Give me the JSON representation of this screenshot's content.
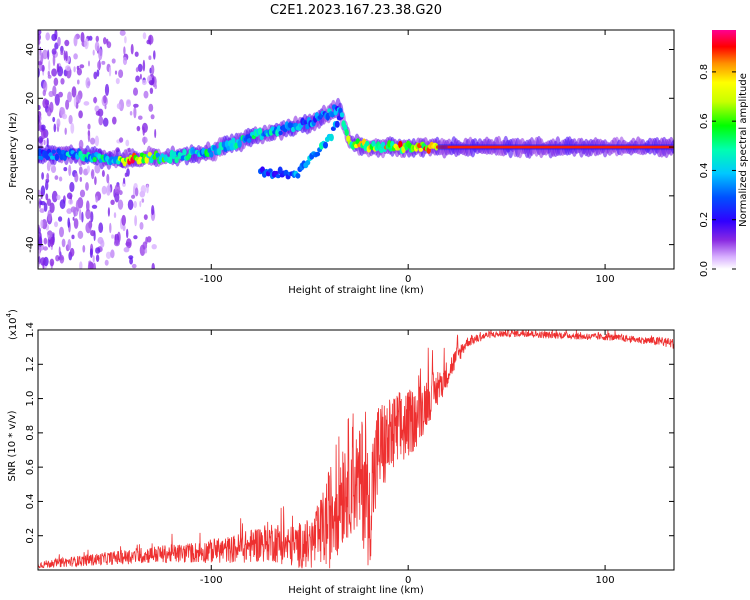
{
  "title": "C2E1.2023.167.23.38.G20",
  "chart_data": [
    {
      "type": "heatmap",
      "xlabel": "Height of straight line (km)",
      "ylabel": "Frequency (Hz)",
      "xlim": [
        -188,
        135
      ],
      "ylim": [
        -50,
        48
      ],
      "xticks": [
        -100,
        0,
        100
      ],
      "yticks": [
        -40,
        -20,
        0,
        20,
        40
      ],
      "colorbar": {
        "label": "Normalized spectral amplitude",
        "range": [
          0,
          0.97
        ],
        "ticks": [
          "0.0",
          "0.2",
          "0.4",
          "0.6",
          "0.8"
        ],
        "tick_values": [
          0,
          0.2,
          0.4,
          0.6,
          0.8
        ],
        "colors": [
          "#ffffff",
          "#c080ff",
          "#6000e0",
          "#0000ff",
          "#00c0ff",
          "#00ffc0",
          "#00ff00",
          "#c0ff00",
          "#ffff00",
          "#ff8000",
          "#ff0000",
          "#ff0080"
        ]
      },
      "ridge": {
        "x": [
          -188,
          -170,
          -160,
          -150,
          -140,
          -130,
          -120,
          -110,
          -100,
          -90,
          -80,
          -70,
          -60,
          -50,
          -45,
          -40,
          -35,
          -30,
          -25,
          -20,
          -10,
          0,
          10,
          20,
          40,
          60,
          80,
          100,
          120,
          135
        ],
        "freq": [
          -3,
          -3,
          -4,
          -5,
          -5,
          -4,
          -4,
          -3,
          -2,
          1,
          4,
          6,
          8,
          10,
          12,
          14,
          16,
          2,
          1,
          0,
          0,
          0,
          0,
          0,
          0,
          0,
          0,
          0,
          0,
          0
        ],
        "amp": [
          0.35,
          0.45,
          0.5,
          0.55,
          0.9,
          0.6,
          0.55,
          0.5,
          0.55,
          0.45,
          0.5,
          0.45,
          0.4,
          0.4,
          0.35,
          0.4,
          0.35,
          0.7,
          0.75,
          0.8,
          0.8,
          0.85,
          0.85,
          0.95,
          0.95,
          0.95,
          0.95,
          0.95,
          0.95,
          0.95
        ]
      },
      "branch": {
        "x": [
          -75,
          -65,
          -58,
          -52,
          -47,
          -43,
          -40,
          -37,
          -34
        ],
        "freq": [
          -10,
          -11,
          -12,
          -7,
          -3,
          1,
          4,
          8,
          12
        ],
        "amp": [
          0.3,
          0.3,
          0.35,
          0.35,
          0.4,
          0.45,
          0.4,
          0.35,
          0.3
        ]
      }
    },
    {
      "type": "line",
      "xlabel": "Height of straight line (km)",
      "ylabel": "SNR (10 * v/v)",
      "scale_label": "(x10",
      "scale_exponent": "4",
      "scale_suffix": ")",
      "xlim": [
        -188,
        135
      ],
      "ylim": [
        0,
        1.4
      ],
      "xticks": [
        -100,
        0,
        100
      ],
      "yticks": [
        0.2,
        0.4,
        0.6,
        0.8,
        1.0,
        1.2,
        1.4
      ],
      "ytick_labels": [
        "0.2",
        "0.4",
        "0.6",
        "0.8",
        "1.0",
        "1.2",
        "1.4"
      ],
      "color": "#ee3030",
      "series": [
        {
          "name": "SNR",
          "x": [
            -188,
            -170,
            -150,
            -130,
            -110,
            -100,
            -90,
            -80,
            -70,
            -60,
            -50,
            -45,
            -40,
            -35,
            -30,
            -25,
            -22,
            -20,
            -18,
            -15,
            -10,
            -5,
            0,
            5,
            10,
            15,
            20,
            25,
            30,
            40,
            50,
            60,
            70,
            80,
            90,
            100,
            110,
            120,
            130,
            135
          ],
          "y": [
            0.03,
            0.05,
            0.07,
            0.09,
            0.1,
            0.11,
            0.12,
            0.14,
            0.17,
            0.14,
            0.15,
            0.2,
            0.3,
            0.45,
            0.55,
            0.5,
            0.55,
            0.3,
            0.5,
            0.7,
            0.75,
            0.8,
            0.85,
            0.9,
            1.0,
            1.05,
            1.15,
            1.25,
            1.33,
            1.37,
            1.38,
            1.38,
            1.37,
            1.37,
            1.36,
            1.36,
            1.35,
            1.34,
            1.33,
            1.32
          ],
          "noise": [
            0.02,
            0.03,
            0.04,
            0.05,
            0.06,
            0.07,
            0.08,
            0.1,
            0.12,
            0.12,
            0.15,
            0.2,
            0.3,
            0.35,
            0.35,
            0.3,
            0.45,
            0.3,
            0.35,
            0.3,
            0.25,
            0.25,
            0.2,
            0.18,
            0.15,
            0.1,
            0.08,
            0.06,
            0.03,
            0.02,
            0.02,
            0.02,
            0.02,
            0.02,
            0.02,
            0.02,
            0.02,
            0.02,
            0.03,
            0.03
          ]
        }
      ]
    }
  ]
}
